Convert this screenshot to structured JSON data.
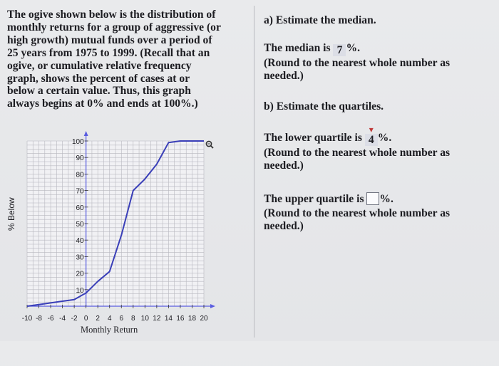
{
  "problem": {
    "lines": [
      "The ogive shown below is the distribution of",
      "monthly returns for a group of aggressive (or",
      "high growth) mutual funds over a period of",
      "25 years from 1975 to 1999. (Recall that an",
      "ogive, or cumulative relative frequency",
      "graph, shows the percent of cases at or",
      "below a certain value. Thus, this graph",
      "always begins at 0% and ends at 100%.)"
    ]
  },
  "questions": {
    "a_title": "a) Estimate the median.",
    "median_prefix": "The median is",
    "median_value": "7",
    "median_suffix": "%.",
    "round_note_1": "(Round to the nearest whole number as",
    "round_note_2": "needed.)",
    "b_title": "b) Estimate the quartiles.",
    "lower_prefix": "The lower quartile is",
    "lower_value": "4",
    "lower_suffix": "%.",
    "upper_prefix": "The upper quartile is",
    "upper_value": "",
    "upper_suffix": "%."
  },
  "zoom_icon": "magnify-icon",
  "colors": {
    "curve": "#3a3fb8",
    "grid": "#b8b8bf",
    "axis": "#5a5de0",
    "answer_box": "#dcdee6"
  },
  "chart_data": {
    "type": "line",
    "title": "",
    "xlabel": "Monthly Return",
    "ylabel": "% Below",
    "xlim": [
      -10,
      20
    ],
    "ylim": [
      0,
      100
    ],
    "x_ticks": [
      "-10",
      "-8",
      "-6",
      "-4",
      "-2",
      "0",
      "2",
      "4",
      "6",
      "8",
      "10",
      "12",
      "14",
      "16",
      "18",
      "20"
    ],
    "y_ticks": [
      "10",
      "20",
      "30",
      "40",
      "50",
      "60",
      "70",
      "80",
      "90",
      "100"
    ],
    "grid": true,
    "series": [
      {
        "x": [
          -10,
          -8,
          -6,
          -4,
          -2,
          0,
          2,
          4,
          6,
          8,
          10,
          12,
          14,
          16,
          18,
          20
        ],
        "y": [
          0,
          1,
          2,
          3,
          4,
          8,
          15,
          21,
          43,
          70,
          77,
          86,
          99,
          100,
          100,
          100
        ]
      }
    ]
  }
}
